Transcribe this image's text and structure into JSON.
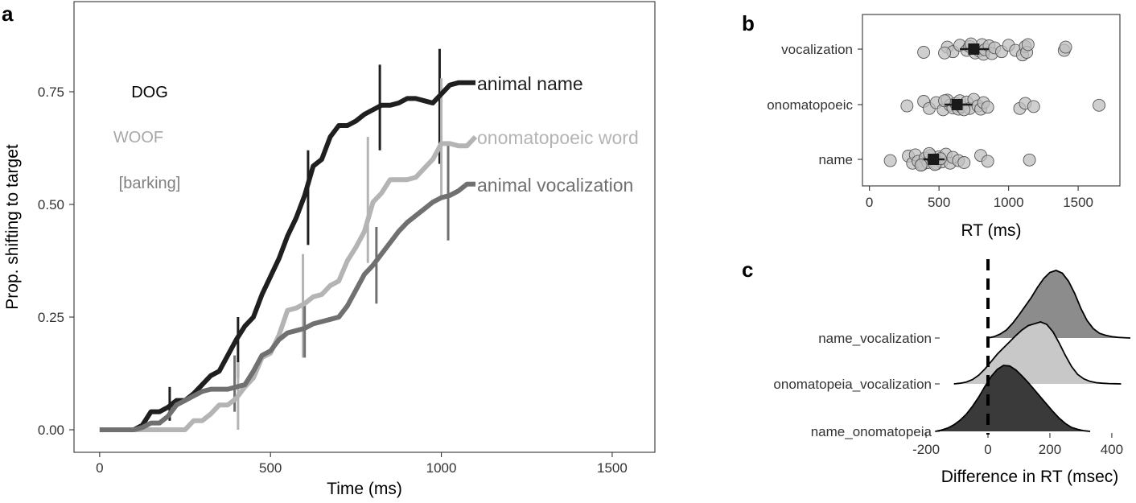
{
  "chart_data": [
    {
      "panel": "a",
      "type": "line",
      "xlabel": "Time (ms)",
      "ylabel": "Prop. shifting to target",
      "xlim": [
        -75,
        1625
      ],
      "ylim": [
        -0.05,
        0.95
      ],
      "xticks": [
        0,
        500,
        1000,
        1500
      ],
      "yticks": [
        0.0,
        0.25,
        0.5,
        0.75
      ],
      "ytick_labels": [
        "0.00",
        "0.25",
        "0.50",
        "0.75"
      ],
      "grid": false,
      "legend_words": [
        {
          "text": "DOG",
          "color": "#000000"
        },
        {
          "text": "WOOF",
          "color": "#a8a8a8"
        },
        {
          "text": "[barking]",
          "color": "#808080"
        }
      ],
      "series": [
        {
          "name": "animal name",
          "color": "#1f1f1f",
          "x": [
            0,
            25,
            50,
            75,
            100,
            125,
            150,
            175,
            200,
            225,
            250,
            275,
            300,
            325,
            350,
            375,
            400,
            425,
            450,
            475,
            500,
            525,
            550,
            575,
            600,
            625,
            650,
            675,
            700,
            725,
            750,
            775,
            800,
            825,
            850,
            875,
            900,
            925,
            950,
            975,
            1000,
            1025,
            1050,
            1075,
            1100
          ],
          "y": [
            0,
            0,
            0,
            0,
            0,
            0.01,
            0.04,
            0.04,
            0.05,
            0.065,
            0.065,
            0.08,
            0.1,
            0.12,
            0.13,
            0.165,
            0.2,
            0.23,
            0.25,
            0.3,
            0.34,
            0.38,
            0.43,
            0.47,
            0.52,
            0.585,
            0.6,
            0.65,
            0.675,
            0.675,
            0.685,
            0.7,
            0.71,
            0.72,
            0.72,
            0.725,
            0.735,
            0.735,
            0.73,
            0.725,
            0.745,
            0.765,
            0.77,
            0.77,
            0.77
          ],
          "errorbars": [
            {
              "x": 205,
              "low": 0.02,
              "high": 0.095
            },
            {
              "x": 405,
              "low": 0.115,
              "high": 0.25
            },
            {
              "x": 610,
              "low": 0.41,
              "high": 0.62
            },
            {
              "x": 820,
              "low": 0.62,
              "high": 0.81
            },
            {
              "x": 995,
              "low": 0.59,
              "high": 0.845
            }
          ]
        },
        {
          "name": "onomatopoeic word",
          "color": "#b4b4b4",
          "x": [
            0,
            25,
            50,
            75,
            100,
            125,
            150,
            175,
            200,
            225,
            250,
            275,
            300,
            325,
            350,
            375,
            400,
            425,
            450,
            475,
            500,
            525,
            550,
            575,
            600,
            625,
            650,
            675,
            700,
            725,
            750,
            775,
            800,
            825,
            850,
            875,
            900,
            925,
            950,
            975,
            1000,
            1025,
            1050,
            1075,
            1100
          ],
          "y": [
            0,
            0,
            0,
            0,
            0,
            0,
            0,
            0,
            0,
            0,
            0,
            0.02,
            0.02,
            0.035,
            0.055,
            0.055,
            0.07,
            0.095,
            0.115,
            0.16,
            0.17,
            0.21,
            0.265,
            0.27,
            0.28,
            0.295,
            0.3,
            0.32,
            0.33,
            0.375,
            0.405,
            0.44,
            0.505,
            0.525,
            0.555,
            0.555,
            0.555,
            0.56,
            0.58,
            0.6,
            0.635,
            0.635,
            0.63,
            0.63,
            0.65
          ],
          "errorbars": [
            {
              "x": 405,
              "low": 0.0,
              "high": 0.15
            },
            {
              "x": 595,
              "low": 0.16,
              "high": 0.39
            },
            {
              "x": 785,
              "low": 0.37,
              "high": 0.65
            },
            {
              "x": 1000,
              "low": 0.51,
              "high": 0.78
            }
          ]
        },
        {
          "name": "animal vocalization",
          "color": "#707070",
          "x": [
            0,
            25,
            50,
            75,
            100,
            125,
            150,
            175,
            200,
            225,
            250,
            275,
            300,
            325,
            350,
            375,
            400,
            425,
            450,
            475,
            500,
            525,
            550,
            575,
            600,
            625,
            650,
            675,
            700,
            725,
            750,
            775,
            800,
            825,
            850,
            875,
            900,
            925,
            950,
            975,
            1000,
            1025,
            1050,
            1075,
            1100
          ],
          "y": [
            0,
            0,
            0,
            0,
            0,
            0.005,
            0.015,
            0.015,
            0.03,
            0.055,
            0.065,
            0.075,
            0.085,
            0.09,
            0.09,
            0.09,
            0.095,
            0.1,
            0.13,
            0.165,
            0.175,
            0.2,
            0.215,
            0.22,
            0.225,
            0.235,
            0.24,
            0.245,
            0.25,
            0.275,
            0.31,
            0.345,
            0.365,
            0.39,
            0.415,
            0.44,
            0.46,
            0.475,
            0.49,
            0.505,
            0.515,
            0.52,
            0.53,
            0.545,
            0.545
          ],
          "errorbars": [
            {
              "x": 395,
              "low": 0.04,
              "high": 0.165
            },
            {
              "x": 600,
              "low": 0.16,
              "high": 0.275
            },
            {
              "x": 810,
              "low": 0.28,
              "high": 0.45
            },
            {
              "x": 1020,
              "low": 0.42,
              "high": 0.635
            }
          ]
        }
      ]
    },
    {
      "panel": "b",
      "type": "scatter",
      "xlabel": "RT (ms)",
      "ylabel": "",
      "xlim": [
        -50,
        1800
      ],
      "xticks": [
        0,
        500,
        1000,
        1500
      ],
      "categories": [
        "vocalization",
        "onomatopoeic",
        "name"
      ],
      "grid": false,
      "point_color": "#bfbfbf",
      "mean_color": "#1a1a1a",
      "groups": [
        {
          "name": "vocalization",
          "points": [
            390,
            560,
            600,
            650,
            700,
            720,
            760,
            790,
            810,
            820,
            830,
            860,
            880,
            900,
            950,
            1000,
            1050,
            1100,
            1120,
            1130,
            1140,
            1400,
            1410,
            540,
            730
          ],
          "jitter": [
            0.05,
            -0.03,
            0.04,
            -0.06,
            0.02,
            -0.04,
            0.06,
            0.03,
            -0.07,
            0.08,
            0.01,
            -0.05,
            0.07,
            -0.02,
            0.04,
            -0.06,
            0.02,
            0.09,
            -0.04,
            0.05,
            -0.07,
            0.02,
            -0.03,
            0.06,
            -0.08
          ],
          "mean": 750,
          "ci": [
            650,
            860
          ]
        },
        {
          "name": "onomatopoeic",
          "points": [
            270,
            390,
            430,
            480,
            530,
            560,
            580,
            600,
            620,
            640,
            650,
            660,
            700,
            720,
            750,
            780,
            800,
            820,
            850,
            1080,
            1120,
            1180,
            1650,
            540,
            680
          ],
          "jitter": [
            0.02,
            -0.05,
            0.06,
            -0.03,
            0.08,
            -0.07,
            0.01,
            0.05,
            -0.02,
            0.07,
            -0.06,
            0.03,
            -0.04,
            0.06,
            -0.08,
            0.02,
            0.07,
            -0.03,
            0.04,
            0.06,
            -0.02,
            0.03,
            0.01,
            -0.06,
            0.08
          ],
          "mean": 630,
          "ci": [
            540,
            740
          ]
        },
        {
          "name": "name",
          "points": [
            150,
            280,
            310,
            330,
            350,
            380,
            400,
            420,
            440,
            460,
            480,
            500,
            520,
            550,
            580,
            600,
            640,
            680,
            800,
            850,
            1150,
            370,
            430,
            470,
            510
          ],
          "jitter": [
            0.02,
            -0.05,
            0.06,
            -0.07,
            0.03,
            0.08,
            -0.02,
            0.05,
            -0.06,
            0.01,
            0.07,
            -0.04,
            0.04,
            -0.08,
            0.06,
            -0.03,
            0.02,
            0.05,
            -0.06,
            0.03,
            0.01,
            0.09,
            -0.09,
            0.08,
            -0.01
          ],
          "mean": 460,
          "ci": [
            390,
            540
          ]
        }
      ]
    },
    {
      "panel": "c",
      "type": "area",
      "xlabel": "Difference in RT (msec)",
      "ylabel": "",
      "xlim": [
        -260,
        460
      ],
      "xticks": [
        -200,
        0,
        200,
        400
      ],
      "reference_line": 0,
      "categories": [
        "name_vocalization",
        "onomatopeia_vocalization",
        "name_onomatopeia"
      ],
      "grid": false,
      "densities": [
        {
          "name": "name_vocalization",
          "color": "#8c8c8c",
          "x": [
            0,
            20,
            40,
            60,
            80,
            100,
            120,
            140,
            160,
            180,
            200,
            220,
            240,
            260,
            280,
            300,
            320,
            340,
            360,
            380,
            400,
            420,
            440,
            460
          ],
          "y": [
            0,
            0.02,
            0.06,
            0.12,
            0.22,
            0.34,
            0.47,
            0.6,
            0.75,
            0.88,
            0.97,
            1.0,
            0.96,
            0.84,
            0.66,
            0.44,
            0.26,
            0.14,
            0.07,
            0.04,
            0.02,
            0.01,
            0.005,
            0
          ]
        },
        {
          "name": "onomatopeia_vocalization",
          "color": "#c8c8c8",
          "x": [
            -110,
            -90,
            -70,
            -50,
            -30,
            -10,
            10,
            30,
            50,
            70,
            90,
            110,
            130,
            150,
            170,
            190,
            210,
            230,
            250,
            270,
            290,
            310,
            330,
            350,
            370,
            390,
            410,
            430
          ],
          "y": [
            0,
            0.01,
            0.03,
            0.07,
            0.14,
            0.24,
            0.36,
            0.48,
            0.58,
            0.68,
            0.78,
            0.87,
            0.94,
            0.97,
            1.0,
            0.96,
            0.84,
            0.66,
            0.46,
            0.28,
            0.15,
            0.08,
            0.04,
            0.02,
            0.01,
            0.005,
            0.002,
            0
          ]
        },
        {
          "name": "name_onomatopeia",
          "color": "#3a3a3a",
          "x": [
            -170,
            -150,
            -130,
            -110,
            -90,
            -70,
            -50,
            -30,
            -10,
            10,
            30,
            50,
            70,
            90,
            110,
            130,
            150,
            170,
            190,
            210,
            230,
            250,
            270,
            290,
            310,
            330
          ],
          "y": [
            0,
            0.02,
            0.05,
            0.1,
            0.17,
            0.26,
            0.38,
            0.52,
            0.68,
            0.83,
            0.94,
            1.0,
            0.99,
            0.93,
            0.84,
            0.74,
            0.63,
            0.52,
            0.41,
            0.3,
            0.2,
            0.12,
            0.06,
            0.03,
            0.01,
            0
          ]
        }
      ]
    }
  ]
}
